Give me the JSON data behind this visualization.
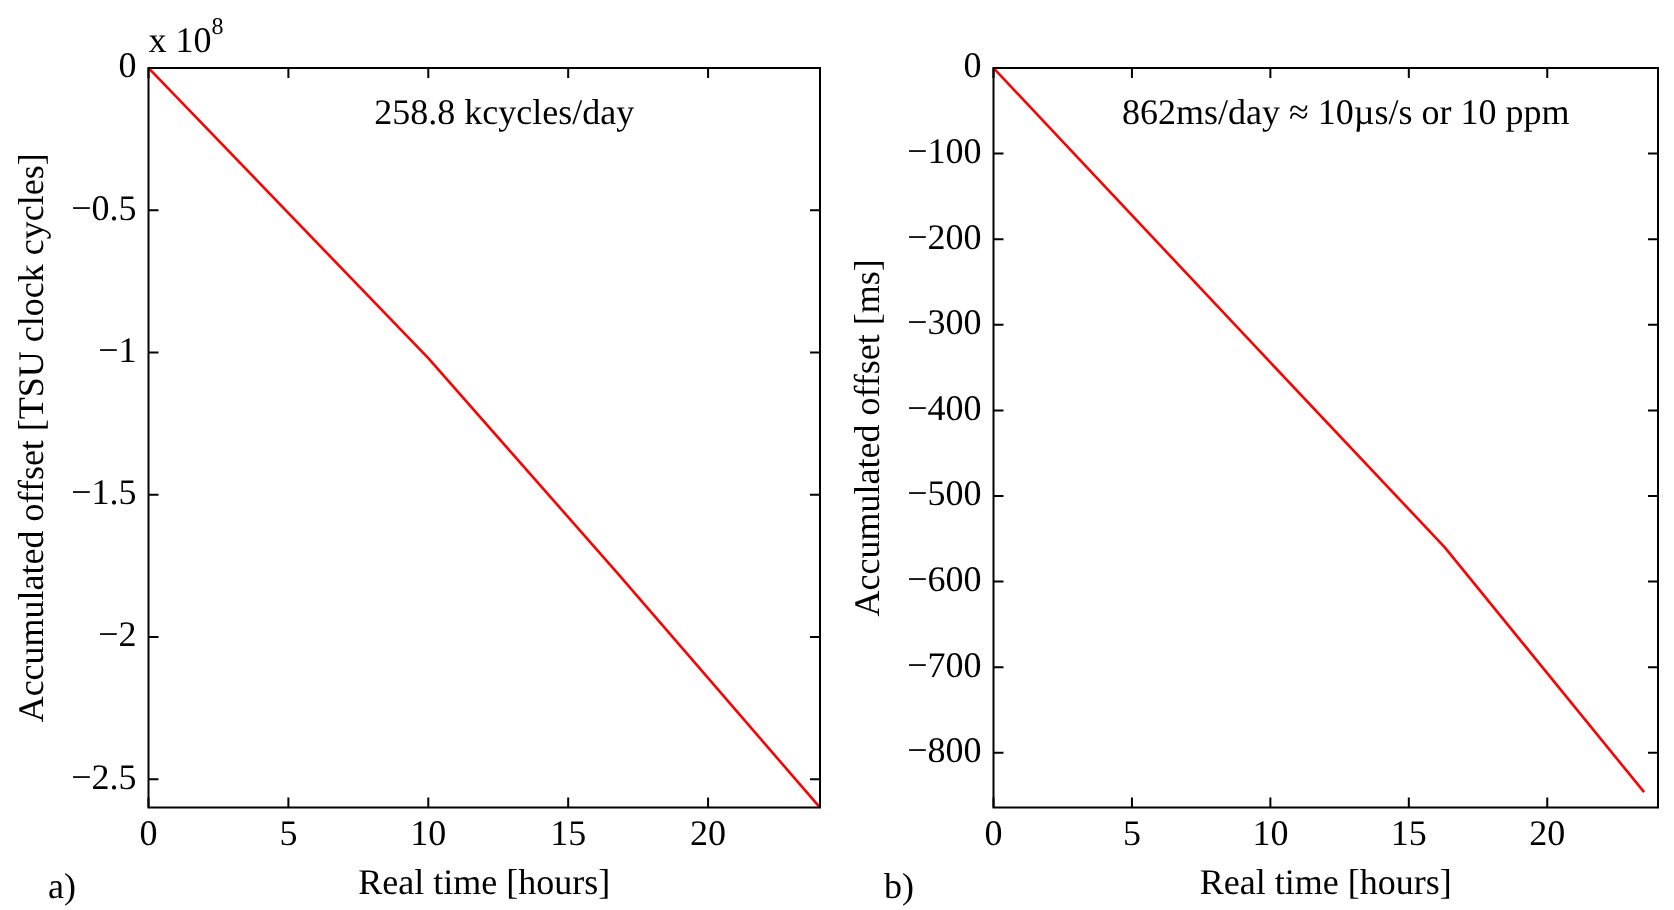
{
  "chart_data": [
    {
      "type": "line",
      "xlabel": "Real time [hours]",
      "ylabel": "Accumulated offset [TSU clock cycles]",
      "annotations": [
        "258.8 kcycles/day",
        "a)",
        "x 10$^{8}$"
      ],
      "series": [
        {
          "color": "#ff0000",
          "x": [
            0,
            10,
            16.8,
            24
          ],
          "values": [
            0,
            -1.02,
            -1.78,
            -2.6
          ]
        }
      ],
      "xlim": [
        0,
        24
      ],
      "xticks": [
        0,
        5,
        10,
        15,
        20
      ],
      "ylim": [
        -2.6,
        0
      ],
      "yticks": [
        -2.5,
        -2,
        -1.5,
        -1,
        -0.5,
        0
      ],
      "grid": false,
      "legend": false,
      "marker": "none",
      "line_style": "solid"
    },
    {
      "type": "line",
      "xlabel": "Real time [hours]",
      "ylabel": "Accumulated offset [ms]",
      "annotations": [
        "862ms/day ≈ 10µs/s or 10 ppm",
        "b)"
      ],
      "series": [
        {
          "color": "#ff0000",
          "x": [
            0,
            10,
            16.3,
            23.5
          ],
          "values": [
            0,
            -344,
            -560,
            -846
          ]
        }
      ],
      "xlim": [
        0,
        24
      ],
      "xticks": [
        0,
        5,
        10,
        15,
        20
      ],
      "ylim": [
        -864,
        0
      ],
      "yticks": [
        -800,
        -700,
        -600,
        -500,
        -400,
        -300,
        -200,
        -100,
        0
      ],
      "grid": false,
      "legend": false,
      "marker": "none",
      "line_style": "solid"
    }
  ]
}
